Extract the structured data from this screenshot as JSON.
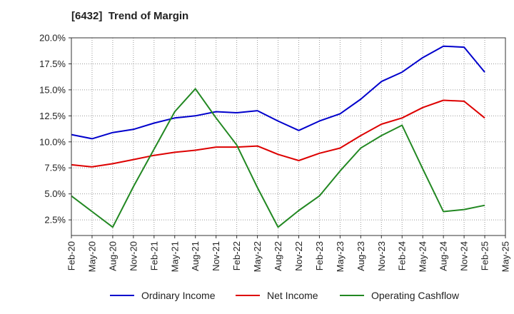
{
  "chart_data": {
    "type": "line",
    "title": "[6432]  Trend of Margin",
    "xlabel": "",
    "ylabel": "",
    "ylim": [
      1.0,
      20.0
    ],
    "yticks": [
      2.5,
      5.0,
      7.5,
      10.0,
      12.5,
      15.0,
      17.5,
      20.0
    ],
    "ytick_labels": [
      "2.5%",
      "5.0%",
      "7.5%",
      "10.0%",
      "12.5%",
      "15.0%",
      "17.5%",
      "20.0%"
    ],
    "categories": [
      "Feb-20",
      "May-20",
      "Aug-20",
      "Nov-20",
      "Feb-21",
      "May-21",
      "Aug-21",
      "Nov-21",
      "Feb-22",
      "May-22",
      "Aug-22",
      "Nov-22",
      "Feb-23",
      "May-23",
      "Aug-23",
      "Nov-23",
      "Feb-24",
      "May-24",
      "Aug-24",
      "Nov-24",
      "Feb-25",
      "May-25"
    ],
    "grid": true,
    "legend_position": "bottom",
    "series": [
      {
        "name": "Ordinary Income",
        "color": "#0000cc",
        "values": [
          10.7,
          10.3,
          10.9,
          11.2,
          11.8,
          12.3,
          12.5,
          12.9,
          12.8,
          13.0,
          12.0,
          11.1,
          12.0,
          12.7,
          14.1,
          15.8,
          16.7,
          18.1,
          19.2,
          19.1,
          16.7,
          null
        ]
      },
      {
        "name": "Net Income",
        "color": "#dd0000",
        "values": [
          7.8,
          7.6,
          7.9,
          8.3,
          8.7,
          9.0,
          9.2,
          9.5,
          9.5,
          9.6,
          8.8,
          8.2,
          8.9,
          9.4,
          10.6,
          11.7,
          12.3,
          13.3,
          14.0,
          13.9,
          12.3,
          null
        ]
      },
      {
        "name": "Operating Cashflow",
        "color": "#228822",
        "values": [
          4.8,
          3.3,
          1.8,
          5.7,
          9.3,
          12.9,
          15.1,
          12.3,
          9.7,
          5.6,
          1.8,
          3.4,
          4.8,
          7.2,
          9.4,
          10.6,
          11.6,
          7.4,
          3.3,
          3.5,
          3.9,
          null
        ]
      }
    ]
  }
}
